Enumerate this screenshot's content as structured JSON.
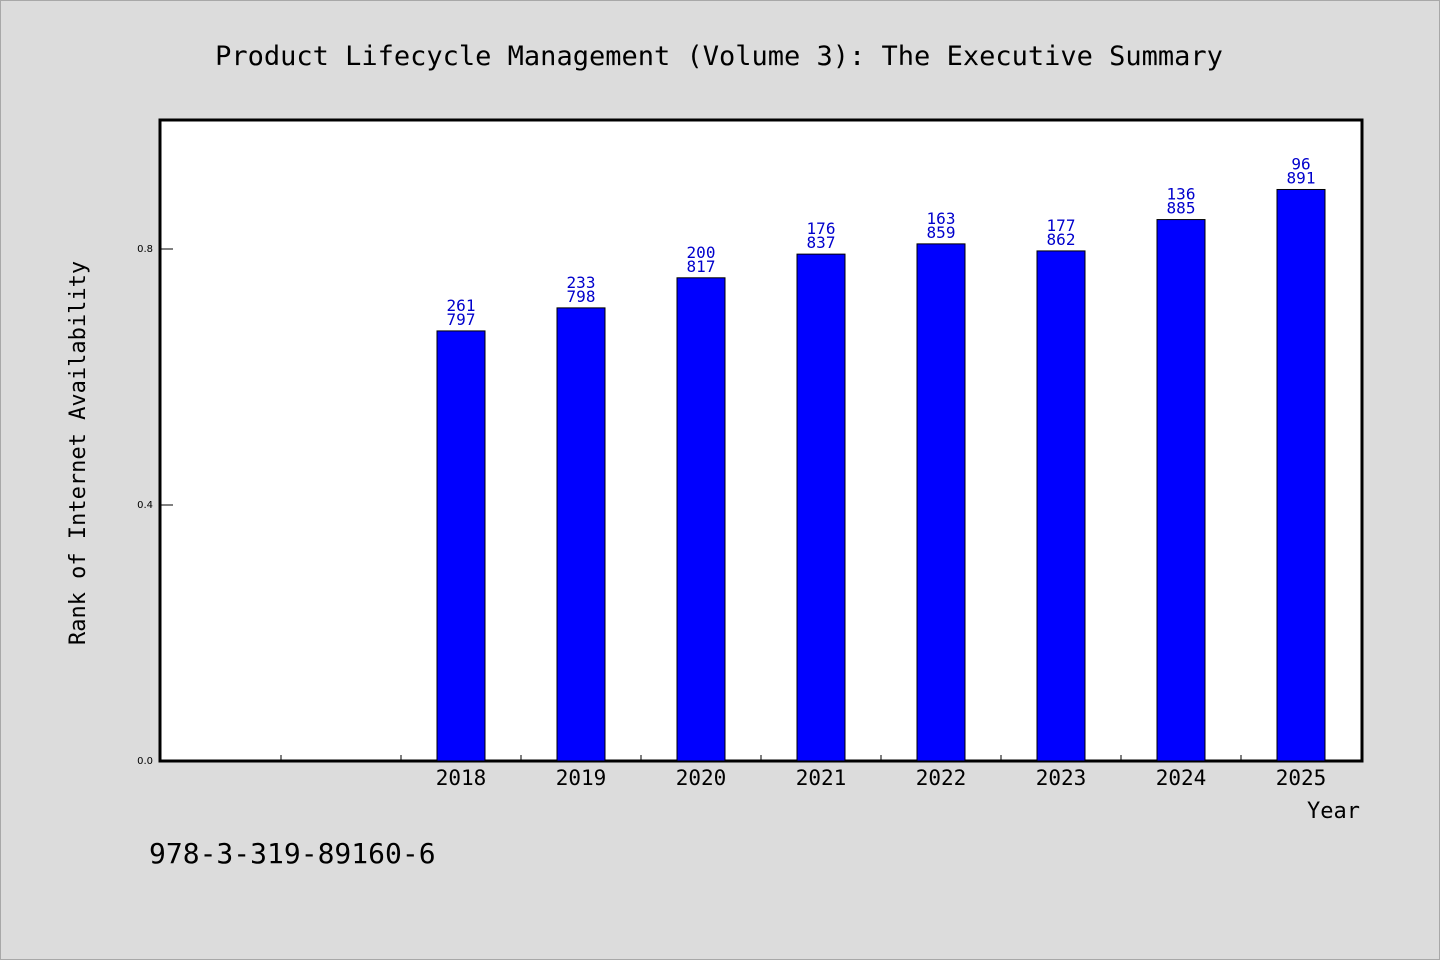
{
  "chart_data": {
    "type": "bar",
    "title": "Product Lifecycle Management (Volume 3): The Executive Summary",
    "xlabel": "Year",
    "ylabel": "Rank of Internet Availability",
    "categories": [
      "2018",
      "2019",
      "2020",
      "2021",
      "2022",
      "2023",
      "2024",
      "2025"
    ],
    "series": [
      {
        "values": [
          0.672,
          0.708,
          0.755,
          0.792,
          0.808,
          0.797,
          0.846,
          0.893
        ],
        "labels_top": [
          "261",
          "233",
          "200",
          "176",
          "163",
          "177",
          "136",
          "96"
        ],
        "labels_bottom": [
          "797",
          "798",
          "817",
          "837",
          "859",
          "862",
          "885",
          "891"
        ]
      }
    ],
    "x_slots_before_first": 2,
    "ylim": [
      0,
      1.0
    ],
    "yticks": [
      0.0,
      0.4,
      0.8
    ],
    "ytick_labels": [
      "0.0",
      "0.4",
      "0.8"
    ],
    "grid": false,
    "legend": "none"
  },
  "isbn": "978-3-319-89160-6",
  "colors": {
    "bar_fill": "#0000ff",
    "label_text": "#0000cc",
    "background": "#dcdcdc",
    "plot_background": "#ffffff"
  }
}
